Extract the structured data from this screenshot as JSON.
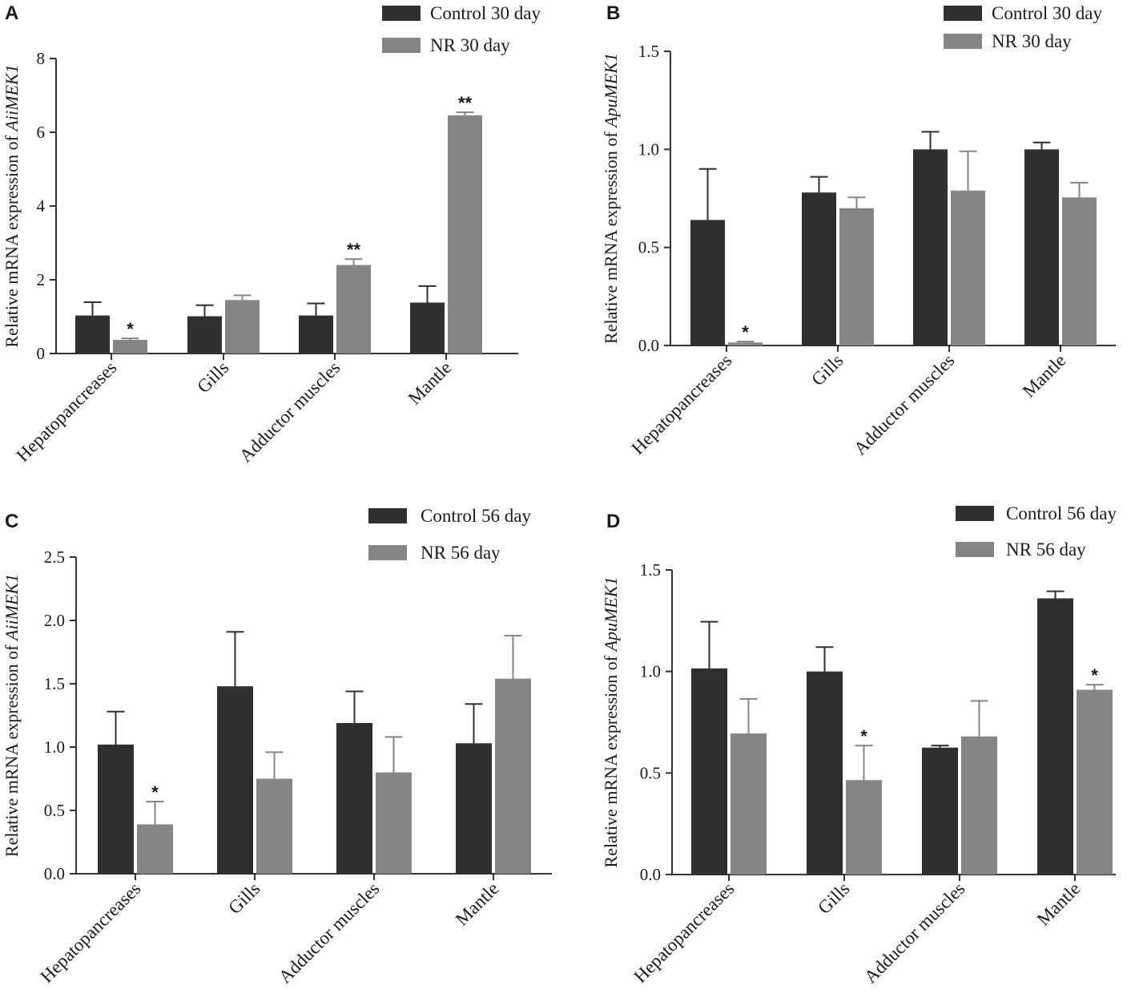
{
  "colors": {
    "control": "#2f2f2f",
    "treatment": "#858585",
    "axis": "#333333",
    "error": "#4a4a4a"
  },
  "chart_data": [
    {
      "panel": "A",
      "type": "bar",
      "ylabel_prefix": "Relative mRNA expression of ",
      "gene": "AiiMEK1",
      "ylim": [
        0,
        8
      ],
      "yticks": [
        "0",
        "2",
        "4",
        "6",
        "8"
      ],
      "categories": [
        "Hepatopancreases",
        "Gills",
        "Adductor muscles",
        "Mantle"
      ],
      "legend_position": "top-right",
      "series": [
        {
          "name": "Control 30 day",
          "values": [
            1.03,
            1.01,
            1.03,
            1.38
          ],
          "errors": [
            0.36,
            0.3,
            0.33,
            0.45
          ],
          "sig": [
            "",
            "",
            "",
            ""
          ]
        },
        {
          "name": "NR 30 day",
          "values": [
            0.37,
            1.45,
            2.4,
            6.46
          ],
          "errors": [
            0.04,
            0.13,
            0.16,
            0.08
          ],
          "sig": [
            "*",
            "",
            "**",
            "**"
          ]
        }
      ]
    },
    {
      "panel": "B",
      "type": "bar",
      "ylabel_prefix": "Relative mRNA expression of ",
      "gene": "ApuMEK1",
      "ylim": [
        0,
        1.5
      ],
      "yticks": [
        "0.0",
        "0.5",
        "1.0",
        "1.5"
      ],
      "categories": [
        "Hepatopancreases",
        "Gills",
        "Adductor muscles",
        "Mantle"
      ],
      "legend_position": "top-right",
      "series": [
        {
          "name": "Control 30 day",
          "values": [
            0.64,
            0.78,
            1.0,
            1.0
          ],
          "errors": [
            0.26,
            0.08,
            0.09,
            0.035
          ],
          "sig": [
            "",
            "",
            "",
            ""
          ]
        },
        {
          "name": "NR 30 day",
          "values": [
            0.015,
            0.7,
            0.79,
            0.755
          ],
          "errors": [
            0.005,
            0.055,
            0.2,
            0.075
          ],
          "sig": [
            "*",
            "",
            "",
            ""
          ]
        }
      ]
    },
    {
      "panel": "C",
      "type": "bar",
      "ylabel_prefix": "Relative mRNA expression of ",
      "gene": "AiiMEK1",
      "ylim": [
        0,
        2.5
      ],
      "yticks": [
        "0.0",
        "0.5",
        "1.0",
        "1.5",
        "2.0",
        "2.5"
      ],
      "categories": [
        "Hepatopancreases",
        "Gills",
        "Adductor muscles",
        "Mantle"
      ],
      "legend_position": "top-right",
      "series": [
        {
          "name": "Control 56 day",
          "values": [
            1.02,
            1.48,
            1.19,
            1.03
          ],
          "errors": [
            0.26,
            0.43,
            0.25,
            0.31
          ],
          "sig": [
            "",
            "",
            "",
            ""
          ]
        },
        {
          "name": "NR 56 day",
          "values": [
            0.39,
            0.75,
            0.8,
            1.54
          ],
          "errors": [
            0.18,
            0.21,
            0.28,
            0.34
          ],
          "sig": [
            "*",
            "",
            "",
            ""
          ]
        }
      ]
    },
    {
      "panel": "D",
      "type": "bar",
      "ylabel_prefix": "Relative mRNA expression of ",
      "gene": "ApuMEK1",
      "ylim": [
        0,
        1.5
      ],
      "yticks": [
        "0.0",
        "0.5",
        "1.0",
        "1.5"
      ],
      "categories": [
        "Hepatopancreases",
        "Gills",
        "Adductor muscles",
        "Mantle"
      ],
      "legend_position": "top-right",
      "series": [
        {
          "name": "Control 56 day",
          "values": [
            1.015,
            1.0,
            0.625,
            1.36
          ],
          "errors": [
            0.23,
            0.12,
            0.01,
            0.035
          ],
          "sig": [
            "",
            "",
            "",
            ""
          ]
        },
        {
          "name": "NR 56 day",
          "values": [
            0.695,
            0.465,
            0.68,
            0.91
          ],
          "errors": [
            0.17,
            0.17,
            0.175,
            0.025
          ],
          "sig": [
            "",
            "*",
            "",
            "*"
          ]
        }
      ]
    }
  ]
}
